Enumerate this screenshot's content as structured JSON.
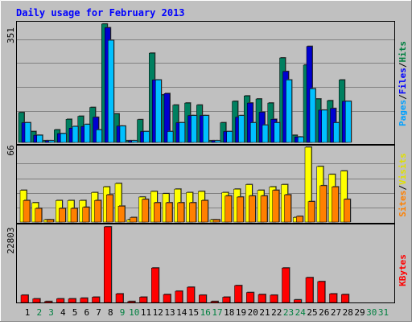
{
  "chart_data": [
    {
      "type": "bar",
      "title": "Daily usage for February 2013",
      "panel": "top",
      "ymax_label": "351",
      "legend": [
        {
          "text": "Pages",
          "color": "#00a0ff"
        },
        {
          "text": "/",
          "color": "#000000"
        },
        {
          "text": "Files",
          "color": "#0000ff"
        },
        {
          "text": "/",
          "color": "#000000"
        },
        {
          "text": "Hits",
          "color": "#008040"
        }
      ],
      "categories": [
        "1",
        "2",
        "3",
        "4",
        "5",
        "6",
        "7",
        "8",
        "9",
        "10",
        "11",
        "12",
        "13",
        "14",
        "15",
        "16",
        "17",
        "18",
        "19",
        "20",
        "21",
        "22",
        "23",
        "24",
        "25",
        "26",
        "27",
        "28",
        "29",
        "30",
        "31"
      ],
      "series": [
        {
          "name": "Hits",
          "color": "#008060",
          "values": [
            88,
            32,
            5,
            37,
            68,
            77,
            103,
            349,
            84,
            5,
            67,
            263,
            140,
            110,
            116,
            110,
            5,
            58,
            121,
            137,
            128,
            116,
            249,
            21,
            228,
            128,
            123,
            184,
            0,
            0,
            0
          ]
        },
        {
          "name": "Files",
          "color": "#0000d0",
          "values": [
            58,
            21,
            5,
            26,
            42,
            47,
            74,
            338,
            48,
            5,
            32,
            184,
            144,
            58,
            79,
            79,
            5,
            32,
            74,
            116,
            89,
            68,
            209,
            16,
            283,
            95,
            100,
            121,
            0,
            0,
            0
          ]
        },
        {
          "name": "Pages",
          "color": "#00c0ff",
          "values": [
            58,
            21,
            5,
            26,
            47,
            53,
            37,
            301,
            48,
            5,
            32,
            184,
            32,
            58,
            79,
            79,
            5,
            32,
            79,
            58,
            51,
            58,
            184,
            16,
            158,
            95,
            58,
            121,
            0,
            0,
            0
          ]
        }
      ]
    },
    {
      "type": "bar",
      "panel": "middle",
      "ymax_label": "66",
      "legend": [
        {
          "text": "Sites",
          "color": "#ff8000"
        },
        {
          "text": "/",
          "color": "#000000"
        },
        {
          "text": "Visits",
          "color": "#e0e000"
        }
      ],
      "categories": [
        "1",
        "2",
        "3",
        "4",
        "5",
        "6",
        "7",
        "8",
        "9",
        "10",
        "11",
        "12",
        "13",
        "14",
        "15",
        "16",
        "17",
        "18",
        "19",
        "20",
        "21",
        "22",
        "23",
        "24",
        "25",
        "26",
        "27",
        "28",
        "29",
        "30",
        "31"
      ],
      "series": [
        {
          "name": "Visits",
          "color": "#ffff00",
          "values": [
            28,
            17,
            2,
            19,
            19,
            19,
            26,
            31,
            34,
            2,
            22,
            27,
            25,
            29,
            26,
            27,
            2,
            26,
            29,
            33,
            28,
            31,
            33,
            4,
            66,
            49,
            42,
            45,
            0,
            0,
            0
          ]
        },
        {
          "name": "Sites",
          "color": "#ff8000",
          "values": [
            19,
            12,
            2,
            12,
            12,
            13,
            19,
            24,
            14,
            4,
            20,
            17,
            17,
            17,
            17,
            19,
            2,
            23,
            22,
            23,
            23,
            28,
            24,
            5,
            18,
            32,
            31,
            20,
            0,
            0,
            0
          ]
        }
      ]
    },
    {
      "type": "bar",
      "panel": "bottom",
      "ymax_label": "22803",
      "legend": [
        {
          "text": "KBytes",
          "color": "#ff0000"
        }
      ],
      "categories": [
        "1",
        "2",
        "3",
        "4",
        "5",
        "6",
        "7",
        "8",
        "9",
        "10",
        "11",
        "12",
        "13",
        "14",
        "15",
        "16",
        "17",
        "18",
        "19",
        "20",
        "21",
        "22",
        "23",
        "24",
        "25",
        "26",
        "27",
        "28",
        "29",
        "30",
        "31"
      ],
      "series": [
        {
          "name": "KBytes",
          "color": "#ff0000",
          "values": [
            2200,
            1100,
            300,
            1100,
            1100,
            1300,
            1600,
            22803,
            2600,
            300,
            1600,
            10400,
            2400,
            3400,
            4600,
            2200,
            300,
            1600,
            5100,
            3000,
            2400,
            2200,
            10400,
            800,
            7500,
            6300,
            2600,
            2400,
            0,
            0,
            0
          ]
        }
      ]
    }
  ],
  "x_axis": {
    "labels": [
      "1",
      "2",
      "3",
      "4",
      "5",
      "6",
      "7",
      "8",
      "9",
      "10",
      "11",
      "12",
      "13",
      "14",
      "15",
      "16",
      "17",
      "18",
      "19",
      "20",
      "21",
      "22",
      "23",
      "24",
      "25",
      "26",
      "27",
      "28",
      "29",
      "30",
      "31"
    ],
    "weekend_days": [
      "2",
      "3",
      "9",
      "10",
      "16",
      "17",
      "23",
      "24",
      "30",
      "31"
    ],
    "weekday_color": "#000000",
    "weekend_color": "#008040"
  },
  "colors": {
    "background": "#c0c0c0",
    "title": "#0000ff",
    "panel_border": "#000000"
  }
}
